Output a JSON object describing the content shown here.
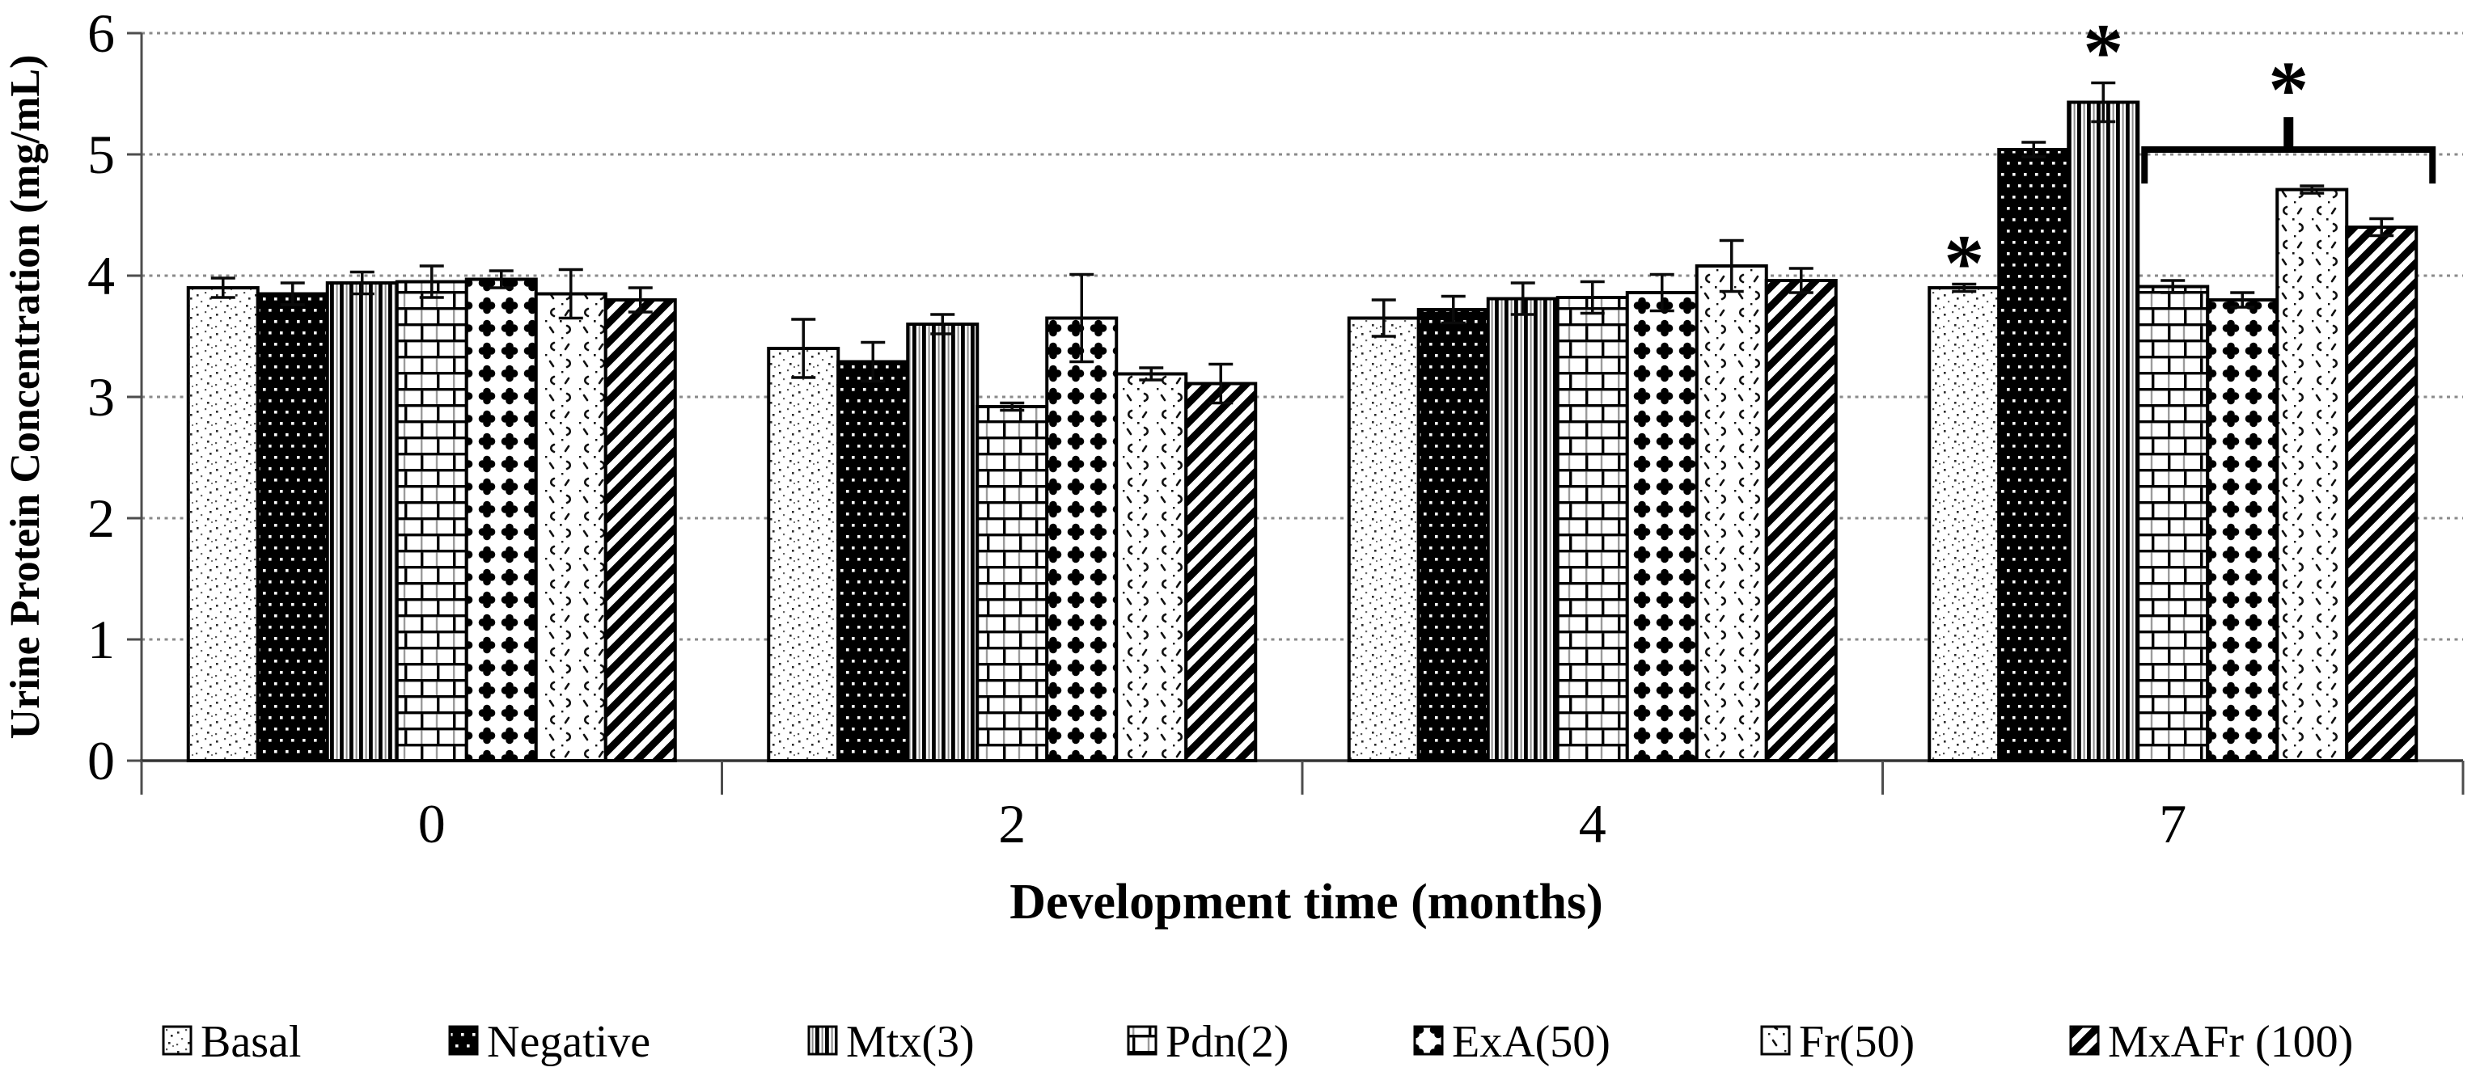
{
  "chart_data": {
    "type": "bar",
    "title": "",
    "xlabel": "Development time (months)",
    "ylabel": "Urine Protein Concentration (mg/mL)",
    "categories": [
      "0",
      "2",
      "4",
      "7"
    ],
    "y_ticks": [
      "0",
      "1",
      "2",
      "3",
      "4",
      "5",
      "6"
    ],
    "ylim": [
      0,
      6
    ],
    "grid": "horizontal dotted gridlines at each integer",
    "legend_position": "bottom",
    "series": [
      {
        "name": "Basal",
        "pattern": "sparse-dots",
        "values": [
          3.9,
          3.4,
          3.65,
          3.9
        ],
        "errors": [
          0.08,
          0.24,
          0.15,
          0.03
        ]
      },
      {
        "name": "Negative",
        "pattern": "black-white-dots",
        "values": [
          3.85,
          3.29,
          3.72,
          5.04
        ],
        "errors": [
          0.09,
          0.16,
          0.11,
          0.06
        ]
      },
      {
        "name": "Mtx(3)",
        "pattern": "vertical-stripes",
        "values": [
          3.94,
          3.6,
          3.81,
          5.43
        ],
        "errors": [
          0.09,
          0.08,
          0.13,
          0.16
        ]
      },
      {
        "name": "Pdn(2)",
        "pattern": "brick",
        "values": [
          3.95,
          2.92,
          3.82,
          3.91
        ],
        "errors": [
          0.13,
          0.03,
          0.13,
          0.05
        ]
      },
      {
        "name": "ExA(50)",
        "pattern": "clover-grid",
        "values": [
          3.97,
          3.65,
          3.86,
          3.8
        ],
        "errors": [
          0.07,
          0.36,
          0.15,
          0.06
        ]
      },
      {
        "name": "Fr(50)",
        "pattern": "scatter-marks",
        "values": [
          3.85,
          3.19,
          4.08,
          4.71
        ],
        "errors": [
          0.2,
          0.05,
          0.21,
          0.03
        ]
      },
      {
        "name": "MxAFr (100)",
        "pattern": "diagonal-stripes",
        "values": [
          3.8,
          3.11,
          3.96,
          4.4
        ],
        "errors": [
          0.1,
          0.16,
          0.1,
          0.07
        ]
      }
    ],
    "annotations": {
      "stars": [
        {
          "symbol": "*",
          "category": "7",
          "series": "Basal",
          "y_value": 4.23
        },
        {
          "symbol": "*",
          "category": "7",
          "series": "Mtx(3)",
          "y_value": 5.97
        },
        {
          "symbol": "*",
          "category": "7",
          "on_bracket": true,
          "y_value": 5.66
        }
      ],
      "bracket": {
        "category": "7",
        "from_series": "Pdn(2)",
        "to_series": "MxAFr (100)",
        "y_value": 5.04
      }
    },
    "colors": {
      "bar_fill": "#ffffff",
      "bar_stroke": "#000000",
      "grid_line": "#8a8a8a",
      "axis_line": "#4d4d4d",
      "text": "#000000"
    }
  }
}
